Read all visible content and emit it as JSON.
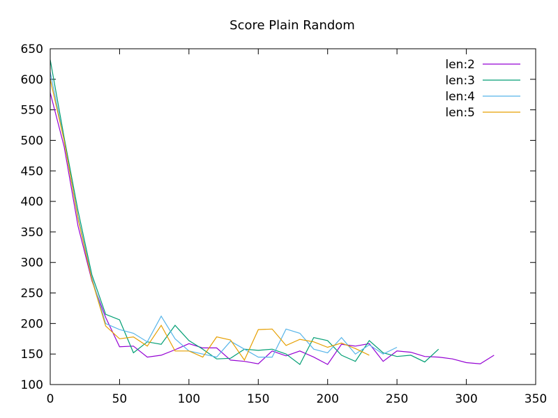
{
  "chart_data": {
    "type": "line",
    "title": "Score Plain Random",
    "xlabel": "",
    "ylabel": "",
    "xlim": [
      0,
      350
    ],
    "ylim": [
      100,
      650
    ],
    "xticks": [
      0,
      50,
      100,
      150,
      200,
      250,
      300,
      350
    ],
    "yticks": [
      100,
      150,
      200,
      250,
      300,
      350,
      400,
      450,
      500,
      550,
      600,
      650
    ],
    "grid": false,
    "legend_position": "top-right",
    "series": [
      {
        "name": "len:2",
        "color": "#9400d3",
        "x": [
          0,
          10,
          20,
          30,
          40,
          50,
          60,
          70,
          80,
          90,
          100,
          110,
          120,
          130,
          140,
          150,
          160,
          170,
          180,
          190,
          200,
          210,
          220,
          230,
          240,
          250,
          260,
          270,
          280,
          290,
          300,
          310,
          320
        ],
        "y": [
          578,
          490,
          360,
          270,
          210,
          162,
          163,
          145,
          148,
          157,
          167,
          160,
          160,
          140,
          138,
          134,
          155,
          147,
          155,
          145,
          133,
          166,
          163,
          167,
          138,
          155,
          153,
          146,
          145,
          142,
          136,
          134,
          148
        ]
      },
      {
        "name": "len:3",
        "color": "#009e73",
        "x": [
          0,
          10,
          20,
          30,
          40,
          50,
          60,
          70,
          80,
          90,
          100,
          110,
          120,
          130,
          140,
          150,
          160,
          170,
          180,
          190,
          200,
          210,
          220,
          230,
          240,
          250,
          260,
          270,
          280
        ],
        "y": [
          632,
          505,
          385,
          280,
          215,
          206,
          152,
          170,
          166,
          197,
          172,
          158,
          142,
          143,
          158,
          156,
          158,
          150,
          133,
          177,
          172,
          148,
          138,
          172,
          152,
          146,
          148,
          137,
          158
        ]
      },
      {
        "name": "len:4",
        "color": "#56b4e9",
        "x": [
          0,
          10,
          20,
          30,
          40,
          50,
          60,
          70,
          80,
          90,
          100,
          110,
          120,
          130,
          140,
          150,
          160,
          170,
          180,
          190,
          200,
          210,
          220,
          230,
          240,
          250
        ],
        "y": [
          612,
          500,
          375,
          275,
          200,
          190,
          184,
          170,
          212,
          175,
          155,
          150,
          145,
          171,
          158,
          145,
          145,
          191,
          184,
          158,
          152,
          177,
          150,
          165,
          150,
          161
        ]
      },
      {
        "name": "len:5",
        "color": "#e69f00",
        "x": [
          0,
          10,
          20,
          30,
          40,
          50,
          60,
          70,
          80,
          90,
          100,
          110,
          120,
          130,
          140,
          150,
          160,
          170,
          180,
          190,
          200,
          210,
          220,
          230
        ],
        "y": [
          600,
          500,
          372,
          272,
          196,
          175,
          178,
          163,
          197,
          155,
          155,
          145,
          178,
          173,
          140,
          190,
          191,
          164,
          174,
          170,
          161,
          168,
          159,
          148
        ]
      }
    ]
  }
}
